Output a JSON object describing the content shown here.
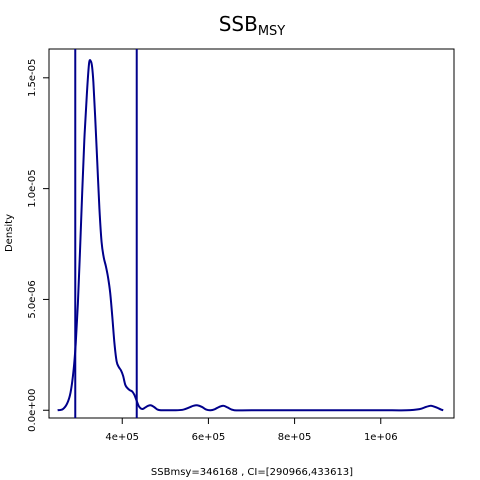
{
  "chart_data": {
    "type": "line",
    "title": "SSB",
    "title_subscript": "MSY",
    "xlabel": "SSBmsy=346168 , CI=[290966,433613]",
    "ylabel": "Density",
    "xlim": [
      230000,
      1170000
    ],
    "ylim": [
      -3.5e-07,
      1.63e-05
    ],
    "x_ticks": [
      {
        "value": 400000,
        "label": "4e+05"
      },
      {
        "value": 600000,
        "label": "6e+05"
      },
      {
        "value": 800000,
        "label": "8e+05"
      },
      {
        "value": 1000000,
        "label": "1e+06"
      }
    ],
    "y_ticks": [
      {
        "value": 0,
        "label": "0.0e+00"
      },
      {
        "value": 5e-06,
        "label": "5.0e-06"
      },
      {
        "value": 1e-05,
        "label": "1.0e-05"
      },
      {
        "value": 1.5e-05,
        "label": "1.5e-05"
      }
    ],
    "vertical_lines": [
      290966,
      433613
    ],
    "line_color": "#00008B",
    "grid": false,
    "series": [
      {
        "x": [
          250000,
          262000,
          272000,
          280000,
          287000,
          292000,
          297000,
          302000,
          307000,
          312000,
          318000,
          323000,
          327000,
          330000,
          333000,
          337000,
          342000,
          347000,
          352000,
          357000,
          362000,
          367000,
          372000,
          377000,
          382000,
          387000,
          392000,
          397000,
          402000,
          407000,
          412000,
          418000,
          423000,
          428000,
          433000,
          438000,
          443000,
          448000,
          453000,
          460000,
          467000,
          475000,
          482000,
          490000,
          500000,
          520000,
          540000,
          555000,
          565000,
          575000,
          585000,
          595000,
          605000,
          615000,
          625000,
          635000,
          645000,
          660000,
          700000,
          800000,
          900000,
          1000000,
          1060000,
          1090000,
          1105000,
          1115000,
          1120000,
          1130000,
          1140000,
          1145000
        ],
        "y": [
          0.0,
          5e-08,
          3e-07,
          8e-07,
          1.8e-06,
          3e-06,
          4.8e-06,
          7.2e-06,
          9.8e-06,
          1.22e-05,
          1.43e-05,
          1.565e-05,
          1.575e-05,
          1.55e-05,
          1.48e-05,
          1.33e-05,
          1.12e-05,
          9.1e-06,
          7.6e-06,
          6.9e-06,
          6.5e-06,
          6e-06,
          5.3e-06,
          4.2e-06,
          3e-06,
          2.2e-06,
          1.95e-06,
          1.8e-06,
          1.55e-06,
          1.15e-06,
          1e-06,
          9e-07,
          8.5e-07,
          7e-07,
          4.5e-07,
          2e-07,
          8e-08,
          6e-08,
          1.2e-07,
          2e-07,
          2.2e-07,
          1.3e-07,
          3e-08,
          0.0,
          0.0,
          0.0,
          2e-08,
          1.2e-07,
          2e-07,
          2.2e-07,
          1.5e-07,
          3e-08,
          0.0,
          5e-08,
          1.5e-07,
          2e-07,
          1.2e-07,
          0.0,
          0.0,
          0.0,
          0.0,
          0.0,
          0.0,
          5e-08,
          1.5e-07,
          2e-07,
          1.9e-07,
          1.2e-07,
          3e-08,
          0.0
        ]
      }
    ]
  }
}
